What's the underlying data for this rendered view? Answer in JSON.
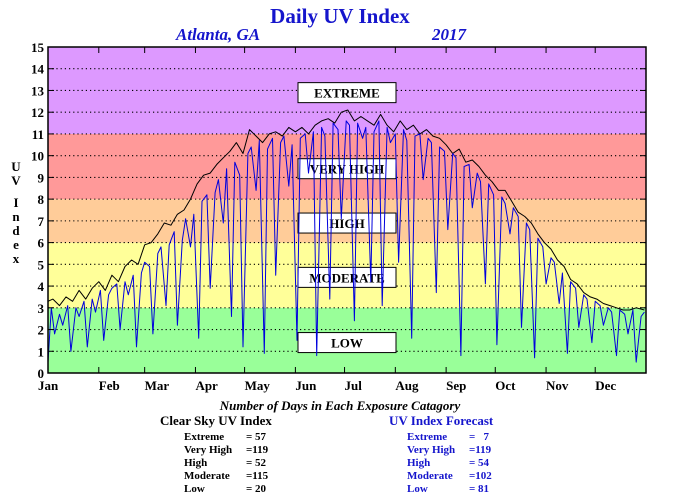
{
  "chart_data": {
    "type": "line",
    "title": "Daily UV Index",
    "location": "Atlanta, GA",
    "year": "2017",
    "ylabel": "UV Index",
    "ylim": [
      0,
      15
    ],
    "yticks": [
      0,
      1,
      2,
      3,
      4,
      5,
      6,
      7,
      8,
      9,
      10,
      11,
      12,
      13,
      14,
      15
    ],
    "xlim": [
      1,
      366
    ],
    "month_labels": [
      "Jan",
      "Feb",
      "Mar",
      "Apr",
      "May",
      "Jun",
      "Jul",
      "Aug",
      "Sep",
      "Oct",
      "Nov",
      "Dec"
    ],
    "month_start_days": [
      1,
      32,
      60,
      91,
      121,
      152,
      182,
      213,
      244,
      274,
      305,
      335
    ],
    "grid": "horizontal dotted",
    "bands": [
      {
        "label": "LOW",
        "from": 0,
        "to": 3,
        "color": "#99ff99",
        "label_y": 1.4
      },
      {
        "label": "MODERATE",
        "from": 3,
        "to": 6,
        "color": "#ffff99",
        "label_y": 4.4
      },
      {
        "label": "HIGH",
        "from": 6,
        "to": 8,
        "color": "#ffcc99",
        "label_y": 6.9
      },
      {
        "label": "VERY HIGH",
        "from": 8,
        "to": 11,
        "color": "#ff9999",
        "label_y": 9.4
      },
      {
        "label": "EXTREME",
        "from": 11,
        "to": 15,
        "color": "#dd99ff",
        "label_y": 12.9
      }
    ],
    "series": [
      {
        "color": "#000000",
        "x": [
          1,
          4,
          8,
          12,
          16,
          20,
          24,
          28,
          32,
          36,
          40,
          44,
          48,
          52,
          56,
          60,
          64,
          68,
          72,
          76,
          80,
          84,
          88,
          92,
          96,
          100,
          104,
          108,
          112,
          116,
          120,
          124,
          128,
          132,
          136,
          140,
          144,
          148,
          152,
          156,
          160,
          164,
          168,
          172,
          176,
          180,
          184,
          188,
          192,
          196,
          200,
          204,
          208,
          212,
          216,
          220,
          224,
          228,
          232,
          236,
          240,
          244,
          248,
          252,
          256,
          260,
          264,
          268,
          272,
          276,
          280,
          284,
          288,
          292,
          296,
          300,
          304,
          308,
          312,
          316,
          320,
          324,
          328,
          332,
          336,
          340,
          344,
          348,
          352,
          356,
          360,
          365
        ],
        "y": [
          3.3,
          3.4,
          3.1,
          3.5,
          3.3,
          3.8,
          3.4,
          3.9,
          4.2,
          3.8,
          4.5,
          4.2,
          4.9,
          5.2,
          5.0,
          5.9,
          6.0,
          6.4,
          6.9,
          6.8,
          7.3,
          7.5,
          8.0,
          8.7,
          9.1,
          9.2,
          9.6,
          9.9,
          10.2,
          10.6,
          10.1,
          11.2,
          10.9,
          10.6,
          11.0,
          11.1,
          10.9,
          11.3,
          11.1,
          11.3,
          11.0,
          11.4,
          11.6,
          11.7,
          11.5,
          12.0,
          12.1,
          11.6,
          11.8,
          11.6,
          11.4,
          11.9,
          11.4,
          11.1,
          11.6,
          11.2,
          11.4,
          11.0,
          11.2,
          10.9,
          10.8,
          10.5,
          10.1,
          10.3,
          9.7,
          9.8,
          9.5,
          9.1,
          8.8,
          8.4,
          8.4,
          7.9,
          7.4,
          7.2,
          6.9,
          6.4,
          6.0,
          5.7,
          5.2,
          4.9,
          4.3,
          4.1,
          3.7,
          3.5,
          3.4,
          3.2,
          3.1,
          3.0,
          2.9,
          2.9,
          3.0,
          2.9
        ]
      },
      {
        "color": "#0000dd",
        "x": [
          1,
          3,
          5,
          8,
          10,
          13,
          15,
          18,
          20,
          23,
          25,
          28,
          30,
          33,
          35,
          38,
          40,
          43,
          45,
          48,
          50,
          53,
          55,
          58,
          60,
          63,
          65,
          68,
          70,
          73,
          75,
          78,
          80,
          83,
          85,
          88,
          90,
          93,
          95,
          98,
          100,
          103,
          105,
          108,
          110,
          113,
          115,
          118,
          120,
          123,
          125,
          128,
          130,
          133,
          135,
          138,
          140,
          143,
          145,
          148,
          150,
          153,
          155,
          158,
          160,
          163,
          165,
          168,
          170,
          173,
          175,
          178,
          180,
          183,
          185,
          188,
          190,
          193,
          195,
          198,
          200,
          203,
          205,
          208,
          210,
          213,
          215,
          218,
          220,
          223,
          225,
          228,
          230,
          233,
          235,
          238,
          240,
          243,
          245,
          248,
          250,
          253,
          255,
          258,
          260,
          263,
          265,
          268,
          270,
          273,
          275,
          278,
          280,
          283,
          285,
          288,
          290,
          293,
          295,
          298,
          300,
          303,
          305,
          308,
          310,
          313,
          315,
          318,
          320,
          323,
          325,
          328,
          330,
          333,
          335,
          338,
          340,
          343,
          345,
          348,
          350,
          353,
          355,
          358,
          360,
          363,
          365
        ],
        "y": [
          0.5,
          3.0,
          1.8,
          2.7,
          2.2,
          3.1,
          1.0,
          3.0,
          2.6,
          3.3,
          1.2,
          3.4,
          2.8,
          3.8,
          1.5,
          3.6,
          3.9,
          4.1,
          2.0,
          4.2,
          3.6,
          4.5,
          1.2,
          4.6,
          5.1,
          4.9,
          1.8,
          5.5,
          5.8,
          3.1,
          5.9,
          6.5,
          2.2,
          6.1,
          7.1,
          5.8,
          7.3,
          1.6,
          7.9,
          8.2,
          3.9,
          8.3,
          8.9,
          6.9,
          9.4,
          2.6,
          9.7,
          9.1,
          1.2,
          10.1,
          10.4,
          8.4,
          10.7,
          0.9,
          10.3,
          10.8,
          4.5,
          10.6,
          10.9,
          8.6,
          10.5,
          1.5,
          10.8,
          11.0,
          9.2,
          11.1,
          0.8,
          11.3,
          10.9,
          3.4,
          11.5,
          11.2,
          7.1,
          11.6,
          11.4,
          2.4,
          11.5,
          10.8,
          11.3,
          4.2,
          11.1,
          11.6,
          3.1,
          11.3,
          10.6,
          11.0,
          5.1,
          11.2,
          10.7,
          1.6,
          10.9,
          11.0,
          8.9,
          10.8,
          10.6,
          3.7,
          10.4,
          10.2,
          6.6,
          10.1,
          9.9,
          0.8,
          9.5,
          9.6,
          7.6,
          9.2,
          8.8,
          4.1,
          8.7,
          8.2,
          1.3,
          8.1,
          7.8,
          6.4,
          7.6,
          7.2,
          2.1,
          6.9,
          6.6,
          0.7,
          6.2,
          5.8,
          4.1,
          5.3,
          5.1,
          3.2,
          4.6,
          0.9,
          4.2,
          3.9,
          2.1,
          3.6,
          3.4,
          1.4,
          3.3,
          3.1,
          2.2,
          3.0,
          2.8,
          0.8,
          2.9,
          2.7,
          1.8,
          2.9,
          0.5,
          2.6,
          2.8
        ]
      }
    ],
    "xlabel": "Number of Days in Each Exposure Catagory",
    "clear_sky": {
      "title": "Clear Sky UV Index",
      "rows": [
        {
          "label": "Extreme",
          "value": "= 57"
        },
        {
          "label": "Very High",
          "value": "=119"
        },
        {
          "label": "High",
          "value": "= 52"
        },
        {
          "label": "Moderate",
          "value": "=115"
        },
        {
          "label": "Low",
          "value": "= 20"
        }
      ]
    },
    "forecast": {
      "title": "UV Index Forecast",
      "rows": [
        {
          "label": "Extreme",
          "value": "=   7"
        },
        {
          "label": "Very High",
          "value": "=119"
        },
        {
          "label": "High",
          "value": "= 54"
        },
        {
          "label": "Moderate",
          "value": "=102"
        },
        {
          "label": "Low",
          "value": "= 81"
        }
      ]
    }
  }
}
